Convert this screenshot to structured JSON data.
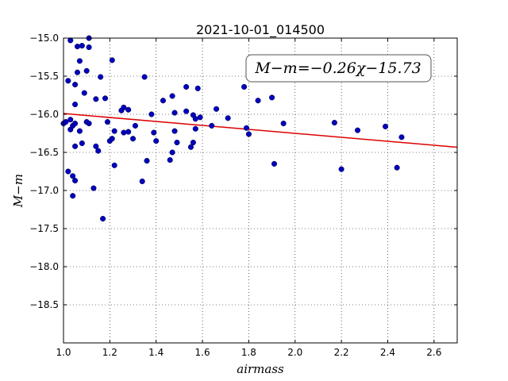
{
  "chart_data": {
    "type": "scatter",
    "title": "2021-10-01_014500",
    "xlabel": "airmass",
    "ylabel": "M−m",
    "xlim": [
      1.0,
      2.7
    ],
    "ylim": [
      -15.0,
      -19.0
    ],
    "y_inverted": true,
    "grid": true,
    "x_ticks": [
      1.0,
      1.2,
      1.4,
      1.6,
      1.8,
      2.0,
      2.2,
      2.4,
      2.6
    ],
    "x_tick_labels": [
      "1.0",
      "1.2",
      "1.4",
      "1.6",
      "1.8",
      "2.0",
      "2.2",
      "2.4",
      "2.6"
    ],
    "y_ticks": [
      -15.0,
      -15.5,
      -16.0,
      -16.5,
      -17.0,
      -17.5,
      -18.0,
      -18.5
    ],
    "y_tick_labels": [
      "−15.0",
      "−15.5",
      "−16.0",
      "−16.5",
      "−17.0",
      "−17.5",
      "−18.0",
      "−18.5"
    ],
    "annotation": "M−m=−0.26χ−15.73",
    "annotation_position": "top-right",
    "fit_line": {
      "slope": -0.26,
      "intercept": -15.73,
      "color": "#dd0000"
    },
    "point_color": "#0000bb",
    "points": [
      [
        1.0,
        -16.12
      ],
      [
        1.01,
        -16.1
      ],
      [
        1.02,
        -15.56
      ],
      [
        1.02,
        -16.75
      ],
      [
        1.03,
        -16.2
      ],
      [
        1.03,
        -16.07
      ],
      [
        1.03,
        -15.03
      ],
      [
        1.04,
        -16.15
      ],
      [
        1.04,
        -16.81
      ],
      [
        1.04,
        -17.07
      ],
      [
        1.05,
        -15.61
      ],
      [
        1.05,
        -16.12
      ],
      [
        1.05,
        -15.87
      ],
      [
        1.05,
        -16.42
      ],
      [
        1.05,
        -16.87
      ],
      [
        1.06,
        -15.11
      ],
      [
        1.06,
        -15.45
      ],
      [
        1.07,
        -15.3
      ],
      [
        1.07,
        -16.22
      ],
      [
        1.08,
        -16.38
      ],
      [
        1.08,
        -15.1
      ],
      [
        1.09,
        -15.72
      ],
      [
        1.1,
        -15.43
      ],
      [
        1.1,
        -16.1
      ],
      [
        1.11,
        -15.0
      ],
      [
        1.11,
        -15.12
      ],
      [
        1.11,
        -16.12
      ],
      [
        1.13,
        -16.97
      ],
      [
        1.14,
        -16.42
      ],
      [
        1.14,
        -15.8
      ],
      [
        1.15,
        -16.48
      ],
      [
        1.16,
        -15.51
      ],
      [
        1.17,
        -17.37
      ],
      [
        1.18,
        -15.79
      ],
      [
        1.19,
        -16.1
      ],
      [
        1.2,
        -16.35
      ],
      [
        1.21,
        -15.29
      ],
      [
        1.21,
        -16.32
      ],
      [
        1.22,
        -16.22
      ],
      [
        1.22,
        -16.67
      ],
      [
        1.25,
        -15.95
      ],
      [
        1.26,
        -15.91
      ],
      [
        1.26,
        -16.24
      ],
      [
        1.28,
        -15.94
      ],
      [
        1.28,
        -16.23
      ],
      [
        1.3,
        -16.32
      ],
      [
        1.31,
        -16.15
      ],
      [
        1.34,
        -16.88
      ],
      [
        1.35,
        -15.51
      ],
      [
        1.36,
        -16.61
      ],
      [
        1.38,
        -16.0
      ],
      [
        1.39,
        -16.24
      ],
      [
        1.4,
        -16.35
      ],
      [
        1.43,
        -15.82
      ],
      [
        1.46,
        -16.6
      ],
      [
        1.47,
        -16.5
      ],
      [
        1.47,
        -15.76
      ],
      [
        1.48,
        -16.22
      ],
      [
        1.48,
        -15.98
      ],
      [
        1.49,
        -16.37
      ],
      [
        1.53,
        -15.64
      ],
      [
        1.53,
        -15.96
      ],
      [
        1.55,
        -16.43
      ],
      [
        1.56,
        -16.37
      ],
      [
        1.56,
        -16.01
      ],
      [
        1.57,
        -16.06
      ],
      [
        1.57,
        -16.19
      ],
      [
        1.58,
        -15.66
      ],
      [
        1.59,
        -16.04
      ],
      [
        1.64,
        -16.15
      ],
      [
        1.66,
        -15.93
      ],
      [
        1.71,
        -16.05
      ],
      [
        1.78,
        -15.64
      ],
      [
        1.79,
        -16.18
      ],
      [
        1.8,
        -16.26
      ],
      [
        1.84,
        -15.82
      ],
      [
        1.9,
        -15.78
      ],
      [
        1.91,
        -16.65
      ],
      [
        1.95,
        -16.12
      ],
      [
        2.17,
        -16.11
      ],
      [
        2.2,
        -16.72
      ],
      [
        2.27,
        -16.21
      ],
      [
        2.39,
        -16.16
      ],
      [
        2.44,
        -16.7
      ],
      [
        2.46,
        -16.3
      ]
    ]
  }
}
